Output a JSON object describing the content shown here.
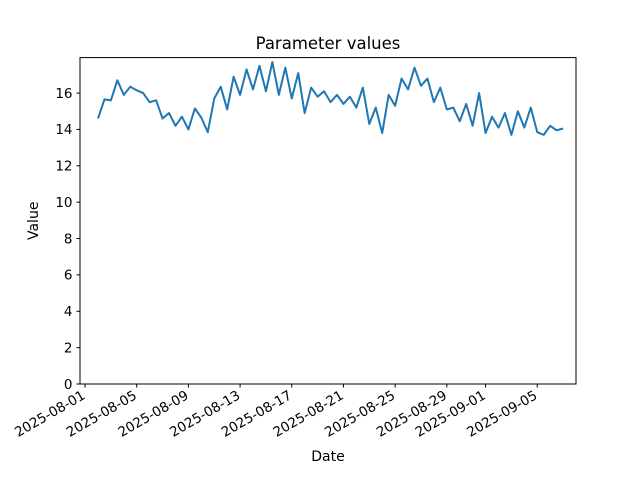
{
  "window": {
    "background": "#ffffff"
  },
  "chart_data": {
    "type": "line",
    "title": "Parameter values",
    "xlabel": "Date",
    "ylabel": "Value",
    "series_name": "Parameter values",
    "series_color": "#1f77b4",
    "axis_color": "#000000",
    "grid": false,
    "legend": "none",
    "x_tick_labels": [
      "2025-08-01",
      "2025-08-05",
      "2025-08-09",
      "2025-08-13",
      "2025-08-17",
      "2025-08-21",
      "2025-08-25",
      "2025-08-29",
      "2025-09-01",
      "2025-09-05"
    ],
    "x_tick_rotation_deg": 30,
    "y_ticks": [
      0,
      2,
      4,
      6,
      8,
      10,
      12,
      14,
      16
    ],
    "x_epoch": "2025-08-01",
    "xlim_days": [
      -0.39,
      38.0
    ],
    "ylim": [
      0,
      17.95
    ],
    "x_days": [
      1,
      1.5,
      2,
      2.5,
      3,
      3.5,
      4,
      4.5,
      5,
      5.5,
      6,
      6.5,
      7,
      7.5,
      8,
      8.5,
      9,
      9.5,
      10,
      10.5,
      11,
      11.5,
      12,
      12.5,
      13,
      13.5,
      14,
      14.5,
      15,
      15.5,
      16,
      16.5,
      17,
      17.5,
      18,
      18.5,
      19,
      19.5,
      20,
      20.5,
      21,
      21.5,
      22,
      22.5,
      23,
      23.5,
      24,
      24.5,
      25,
      25.5,
      26,
      26.5,
      27,
      27.5,
      28,
      28.5,
      29,
      29.5,
      30,
      30.5,
      31,
      31.5,
      32,
      32.5,
      33,
      33.5,
      34,
      34.5,
      35,
      35.5,
      36,
      36.5,
      37
    ],
    "values": [
      14.6,
      15.65,
      15.6,
      16.7,
      15.9,
      16.35,
      16.15,
      16.0,
      15.5,
      15.6,
      14.6,
      14.9,
      14.2,
      14.7,
      14.0,
      15.15,
      14.65,
      13.85,
      15.7,
      16.35,
      15.1,
      16.9,
      15.9,
      17.3,
      16.2,
      17.5,
      16.1,
      17.7,
      15.9,
      17.4,
      15.7,
      17.1,
      14.9,
      16.3,
      15.8,
      16.1,
      15.5,
      15.9,
      15.4,
      15.8,
      15.2,
      16.3,
      14.3,
      15.2,
      13.8,
      15.9,
      15.3,
      16.8,
      16.2,
      17.4,
      16.4,
      16.8,
      15.5,
      16.3,
      15.1,
      15.2,
      14.45,
      15.4,
      14.2,
      16.0,
      13.8,
      14.7,
      14.1,
      14.9,
      13.7,
      15.0,
      14.1,
      15.2,
      13.85,
      13.7,
      14.2,
      13.95,
      14.05
    ]
  }
}
